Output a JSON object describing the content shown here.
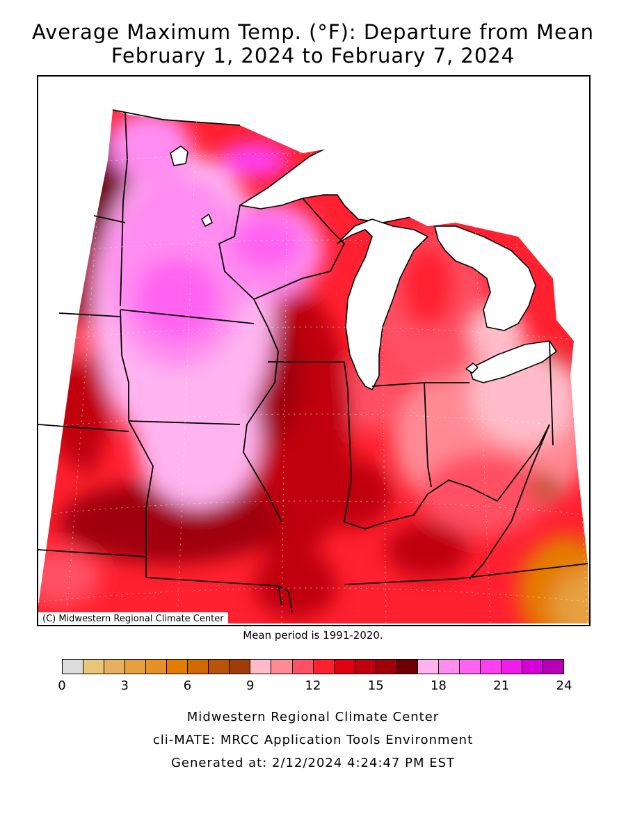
{
  "title_line1": "Average Maximum Temp. (°F): Departure from Mean",
  "title_line2": "February 1, 2024 to February 7, 2024",
  "map": {
    "copyright": "(C) Midwestern Regional Climate Center",
    "mean_period": "Mean period is 1991-2020."
  },
  "legend": {
    "colors": [
      "#dcdcdc",
      "#e8c878",
      "#e6b060",
      "#e6a040",
      "#e89028",
      "#e47c00",
      "#d06800",
      "#b85408",
      "#a03c08",
      "#ffbcc8",
      "#ff8a94",
      "#ff5064",
      "#ff2030",
      "#e00010",
      "#c00010",
      "#a00008",
      "#6e0000",
      "#ffb4f0",
      "#ff8cf0",
      "#ff64f0",
      "#ff40f0",
      "#f01cec",
      "#d800d8",
      "#b800b8"
    ],
    "ticks": [
      "0",
      "3",
      "6",
      "9",
      "12",
      "15",
      "18",
      "21",
      "24"
    ]
  },
  "footer": {
    "line1": "Midwestern Regional Climate Center",
    "line2": "cli-MATE: MRCC Application Tools Environment",
    "line3": "Generated at: 2/12/2024 4:24:47 PM EST"
  }
}
